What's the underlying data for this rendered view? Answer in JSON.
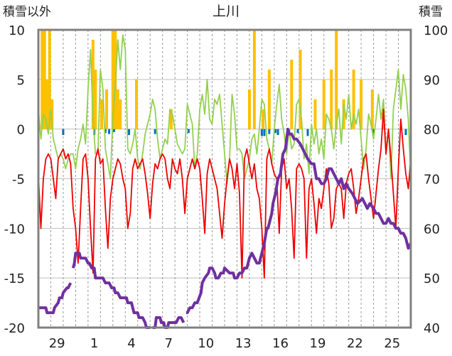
{
  "chart_data": {
    "type": "line",
    "title": "上川",
    "left_axis_label": "積雪以外",
    "right_axis_label": "積雪",
    "left_ylim": [
      -20,
      10
    ],
    "right_ylim": [
      40,
      100
    ],
    "left_ticks": [
      "10",
      "5",
      "0",
      "-5",
      "-10",
      "-15",
      "-20"
    ],
    "right_ticks": [
      "100",
      "90",
      "80",
      "70",
      "60",
      "50",
      "40"
    ],
    "x_ticks": [
      "29",
      "1",
      "4",
      "7",
      "10",
      "13",
      "16",
      "19",
      "22",
      "25"
    ],
    "x_range": [
      0,
      30
    ],
    "x_tick_positions": [
      1.5,
      4.5,
      7.5,
      10.5,
      13.5,
      16.5,
      19.5,
      22.5,
      25.5,
      28.5
    ],
    "day_grid": [
      1,
      2,
      3,
      4,
      5,
      6,
      7,
      8,
      9,
      10,
      11,
      12,
      13,
      14,
      15,
      16,
      17,
      18,
      19,
      20,
      21,
      22,
      23,
      24,
      25,
      26,
      27,
      28,
      29
    ],
    "grid": "dashed-vertical-solid-horizontal",
    "colors": {
      "temperature": "#ee0000",
      "wind": "#92d050",
      "snowfall": "#ffc000",
      "precip": "#0070c0",
      "snow_depth": "#7030a0",
      "frame": "#808080"
    },
    "series": [
      {
        "key": "snowfall",
        "axis": "left",
        "style": "bar",
        "x": [
          0.3,
          0.5,
          0.7,
          0.9,
          1.1,
          4.4,
          4.6,
          5.1,
          5.5,
          6.0,
          6.2,
          6.4,
          6.6,
          7.9,
          10.7,
          17.0,
          17.4,
          18.1,
          18.6,
          20.4,
          21.1,
          22.3,
          23.0,
          23.6,
          24.0,
          24.6,
          25.4,
          26.0,
          26.9,
          27.8
        ],
        "values": [
          10,
          10,
          5,
          10,
          3,
          9,
          6,
          3,
          4,
          10,
          10,
          4,
          3,
          5,
          2,
          4,
          10,
          2,
          6,
          7,
          8,
          3,
          5,
          6,
          10,
          3,
          6,
          5,
          4,
          2
        ]
      },
      {
        "key": "precip",
        "axis": "left",
        "style": "bar",
        "x": [
          2.0,
          4.5,
          5.4,
          5.7,
          6.1,
          7.3,
          9.4,
          12.1,
          18.0,
          18.2,
          18.6,
          19.1,
          19.3,
          20.2,
          20.9,
          21.7,
          27.0,
          29.6
        ],
        "values": [
          -0.6,
          -0.6,
          -0.4,
          -0.5,
          -0.3,
          -0.6,
          -0.5,
          -0.4,
          -0.7,
          -0.7,
          -0.5,
          -0.4,
          -0.6,
          -0.6,
          -0.4,
          -0.7,
          -0.5,
          -0.6
        ]
      },
      {
        "key": "wind",
        "axis": "left",
        "style": "line",
        "x": [
          0.0,
          0.2,
          0.4,
          0.6,
          0.8,
          1.0,
          1.2,
          1.4,
          1.6,
          1.8,
          2.0,
          2.2,
          2.4,
          2.6,
          2.8,
          3.0,
          3.2,
          3.4,
          3.6,
          3.8,
          4.0,
          4.2,
          4.4,
          4.6,
          4.8,
          5.0,
          5.2,
          5.4,
          5.6,
          5.8,
          6.0,
          6.2,
          6.4,
          6.6,
          6.8,
          7.0,
          7.2,
          7.4,
          7.6,
          7.8,
          8.0,
          8.2,
          8.4,
          8.6,
          8.8,
          9.0,
          9.2,
          9.4,
          9.6,
          9.8,
          10.0,
          10.2,
          10.4,
          10.6,
          10.8,
          11.0,
          11.2,
          11.4,
          11.6,
          11.8,
          12.0,
          12.2,
          12.4,
          12.6,
          12.8,
          13.0,
          13.2,
          13.4,
          13.6,
          13.8,
          14.0,
          14.2,
          14.4,
          14.6,
          14.8,
          15.0,
          15.2,
          15.4,
          15.6,
          15.8,
          16.0,
          16.2,
          16.4,
          16.6,
          16.8,
          17.0,
          17.2,
          17.4,
          17.6,
          17.8,
          18.0,
          18.2,
          18.4,
          18.6,
          18.8,
          19.0,
          19.2,
          19.4,
          19.6,
          19.8,
          20.0,
          20.2,
          20.4,
          20.6,
          20.8,
          21.0,
          21.2,
          21.4,
          21.6,
          21.8,
          22.0,
          22.2,
          22.4,
          22.6,
          22.8,
          23.0,
          23.2,
          23.4,
          23.6,
          23.8,
          24.0,
          24.2,
          24.4,
          24.6,
          24.8,
          25.0,
          25.2,
          25.4,
          25.6,
          25.8,
          26.0,
          26.2,
          26.4,
          26.6,
          26.8,
          27.0,
          27.2,
          27.4,
          27.6,
          27.8,
          28.0,
          28.2,
          28.4,
          28.6,
          28.8,
          29.0,
          29.2,
          29.4,
          29.6,
          29.8,
          30.0
        ],
        "values": [
          2.0,
          -1.0,
          1.5,
          1.0,
          -0.5,
          2.0,
          -1.0,
          -2.0,
          -3.0,
          -2.5,
          -3.0,
          -4.0,
          -3.0,
          -2.5,
          -2.5,
          -4.0,
          -2.0,
          -1.0,
          0.5,
          -1.5,
          4.0,
          8.0,
          1.0,
          -2.5,
          -2.5,
          6.0,
          4.0,
          -2.0,
          -3.5,
          -5.0,
          1.0,
          4.5,
          9.0,
          6.0,
          9.5,
          8.0,
          -2.0,
          -2.5,
          -1.5,
          0.0,
          -3.0,
          -4.0,
          -2.5,
          -0.5,
          0.5,
          1.5,
          3.0,
          2.0,
          -1.0,
          -3.0,
          -2.0,
          -1.0,
          -1.5,
          2.0,
          1.5,
          0.0,
          -1.5,
          -2.0,
          -2.5,
          -2.0,
          2.5,
          1.5,
          0.5,
          -4.0,
          -2.5,
          2.0,
          3.5,
          1.5,
          5.0,
          1.0,
          0.5,
          3.0,
          2.5,
          3.5,
          0.5,
          -2.5,
          -5.5,
          -3.0,
          3.5,
          1.5,
          -2.0,
          -2.0,
          -2.5,
          -5.0,
          -4.0,
          -3.0,
          -1.0,
          -0.5,
          -2.5,
          0.0,
          3.0,
          2.5,
          -1.0,
          -2.0,
          -3.5,
          0.0,
          2.5,
          4.5,
          1.0,
          -0.5,
          -2.5,
          0.0,
          -2.0,
          -1.5,
          2.5,
          3.0,
          1.0,
          -3.0,
          -1.5,
          -4.5,
          0.5,
          -1.5,
          0.0,
          -2.5,
          -1.0,
          -3.0,
          1.5,
          1.0,
          0.0,
          -2.0,
          0.5,
          2.0,
          -1.5,
          2.5,
          1.0,
          3.5,
          0.0,
          1.5,
          0.5,
          2.0,
          -1.0,
          -4.0,
          -2.0,
          1.5,
          0.5,
          -1.0,
          1.0,
          3.5,
          1.0,
          3.0,
          -2.5,
          0.0,
          -5.0,
          2.0,
          4.0,
          6.0,
          2.0,
          5.5,
          4.0,
          1.0,
          -5.0
        ],
        "name": ""
      },
      {
        "key": "temperature",
        "axis": "left",
        "style": "line",
        "x": [
          0.0,
          0.2,
          0.4,
          0.6,
          0.8,
          1.0,
          1.2,
          1.4,
          1.6,
          1.8,
          2.0,
          2.2,
          2.4,
          2.6,
          2.8,
          3.0,
          3.2,
          3.4,
          3.6,
          3.8,
          4.0,
          4.2,
          4.4,
          4.6,
          4.8,
          5.0,
          5.2,
          5.4,
          5.6,
          5.8,
          6.0,
          6.2,
          6.4,
          6.6,
          6.8,
          7.0,
          7.2,
          7.4,
          7.6,
          7.8,
          8.0,
          8.2,
          8.4,
          8.6,
          8.8,
          9.0,
          9.2,
          9.4,
          9.6,
          9.8,
          10.0,
          10.2,
          10.4,
          10.6,
          10.8,
          11.0,
          11.2,
          11.4,
          11.6,
          11.8,
          12.0,
          12.2,
          12.4,
          12.6,
          12.8,
          13.0,
          13.2,
          13.4,
          13.6,
          13.8,
          14.0,
          14.2,
          14.4,
          14.6,
          14.8,
          15.0,
          15.2,
          15.4,
          15.6,
          15.8,
          16.0,
          16.2,
          16.4,
          16.6,
          16.8,
          17.0,
          17.2,
          17.4,
          17.6,
          17.8,
          18.0,
          18.2,
          18.4,
          18.6,
          18.8,
          19.0,
          19.2,
          19.4,
          19.6,
          19.8,
          20.0,
          20.2,
          20.4,
          20.6,
          20.8,
          21.0,
          21.2,
          21.4,
          21.6,
          21.8,
          22.0,
          22.2,
          22.4,
          22.6,
          22.8,
          23.0,
          23.2,
          23.4,
          23.6,
          23.8,
          24.0,
          24.2,
          24.4,
          24.6,
          24.8,
          25.0,
          25.2,
          25.4,
          25.6,
          25.8,
          26.0,
          26.2,
          26.4,
          26.6,
          26.8,
          27.0,
          27.2,
          27.4,
          27.6,
          27.8,
          28.0,
          28.2,
          28.4,
          28.6,
          28.8,
          29.0,
          29.2,
          29.4,
          29.6,
          29.8,
          30.0
        ],
        "values": [
          -4.5,
          -10.0,
          -5.0,
          -3.0,
          -2.5,
          -3.0,
          -5.0,
          -7.0,
          -3.0,
          -2.5,
          -2.0,
          -3.0,
          -2.5,
          -3.5,
          -8.0,
          -10.0,
          -13.5,
          -8.0,
          -3.0,
          -2.5,
          -5.0,
          -10.0,
          -14.5,
          -3.0,
          -2.0,
          -3.5,
          -3.0,
          -8.0,
          -12.0,
          -7.0,
          -5.0,
          -4.0,
          -3.0,
          -3.5,
          -5.0,
          -6.0,
          -10.0,
          -8.5,
          -4.0,
          -3.0,
          -4.0,
          -3.5,
          -3.0,
          -4.5,
          -6.5,
          -9.0,
          -5.5,
          -3.5,
          -4.0,
          -3.0,
          -2.5,
          -3.0,
          -5.0,
          -6.0,
          -3.0,
          -4.0,
          -4.5,
          -3.0,
          -5.0,
          -8.5,
          -5.0,
          -4.0,
          -3.0,
          -4.0,
          -3.0,
          -4.0,
          -7.0,
          -10.5,
          -4.5,
          -3.0,
          -4.0,
          -5.0,
          -6.0,
          -8.5,
          -11.0,
          -7.5,
          -5.0,
          -3.0,
          -4.0,
          -6.0,
          -3.5,
          -6.5,
          -15.0,
          -3.0,
          -2.0,
          -3.5,
          -5.0,
          -3.5,
          -6.0,
          -7.0,
          -10.0,
          -15.0,
          -3.0,
          -2.0,
          -3.5,
          -4.5,
          -5.0,
          -10.5,
          -4.0,
          -3.0,
          -6.0,
          -5.0,
          -8.0,
          -13.0,
          -4.0,
          -3.5,
          -4.0,
          -5.0,
          -13.0,
          -6.0,
          -5.0,
          -7.5,
          -10.5,
          -7.0,
          -8.0,
          -6.0,
          -4.0,
          -5.5,
          -10.0,
          -9.0,
          -6.0,
          -5.5,
          -6.0,
          -9.0,
          -5.5,
          -4.5,
          -4.0,
          -6.0,
          -8.5,
          -7.0,
          -5.0,
          -3.0,
          -2.5,
          -5.0,
          -7.0,
          -9.0,
          -6.5,
          -4.0,
          -2.0,
          2.0,
          -2.5,
          0.0,
          -3.0,
          -6.5,
          -10.0,
          -4.0,
          1.0,
          -2.0,
          -4.5,
          -6.0,
          -3.0
        ],
        "name": ""
      },
      {
        "key": "snow_depth",
        "axis": "right",
        "style": "line",
        "segments": [
          {
            "x": [
              0.0,
              0.6,
              0.7,
              1.2,
              1.3,
              1.6,
              1.7,
              1.9,
              2.0,
              2.3,
              2.4,
              2.6
            ],
            "values": [
              44,
              44,
              43,
              43,
              44,
              45,
              46,
              46,
              47,
              48,
              48,
              49
            ]
          },
          {
            "x": [
              2.8,
              2.9,
              3.0,
              3.3,
              3.4,
              3.8,
              4.0,
              4.1,
              4.3,
              4.5,
              4.6,
              5.2,
              5.4,
              5.7,
              5.9,
              6.1,
              6.2,
              6.4,
              6.6,
              7.1,
              7.2,
              7.5,
              7.7,
              8.0,
              8.1,
              8.4,
              8.6,
              8.7,
              9.0
            ],
            "values": [
              52,
              53,
              55,
              55,
              54,
              54,
              53,
              53,
              52,
              52,
              50,
              50,
              49,
              49,
              48,
              48,
              47,
              47,
              46,
              46,
              45,
              45,
              43,
              43,
              42,
              42,
              41,
              40,
              40
            ]
          },
          {
            "x": [
              9.2,
              9.4,
              9.5,
              9.8,
              9.9,
              10.1,
              10.2,
              10.4,
              10.5,
              11.1,
              11.3,
              11.5,
              11.7
            ],
            "values": [
              40,
              40,
              42,
              42,
              41,
              41,
              40,
              40,
              41,
              41,
              42,
              42,
              41
            ]
          },
          {
            "x": [
              11.9,
              12.0,
              12.2,
              12.4,
              12.6,
              12.8,
              13.1,
              13.2,
              13.4,
              13.7,
              13.8,
              14.0,
              14.2,
              14.3,
              14.5,
              14.7,
              14.9,
              15.0,
              15.4,
              15.7,
              15.8,
              16.0,
              16.2,
              16.4,
              16.6,
              16.8,
              17.0,
              17.2,
              17.4,
              17.6,
              17.8,
              18.0,
              18.2,
              18.4,
              18.5,
              18.8,
              18.9,
              19.1,
              19.3,
              19.5,
              19.7,
              19.9,
              20.1,
              20.2,
              20.4,
              20.6,
              20.8,
              21.1,
              21.3,
              21.5,
              21.7,
              22.0,
              22.2,
              22.4,
              22.6,
              22.8,
              23.0,
              23.2,
              23.4,
              23.6,
              23.8,
              24.0,
              24.2,
              24.4,
              24.6,
              24.8,
              25.0,
              25.3,
              25.5,
              25.7,
              26.1,
              26.3,
              26.5,
              26.7,
              27.0,
              27.2,
              27.4,
              27.6,
              27.8,
              28.0,
              28.2,
              28.4,
              28.6,
              28.8,
              29.0,
              29.2,
              29.4,
              29.6,
              29.8,
              30.0
            ],
            "values": [
              43,
              43,
              44,
              44,
              45,
              45,
              47,
              49,
              50,
              51,
              52,
              52,
              51,
              50,
              50,
              51,
              51,
              52,
              51,
              51,
              50,
              50,
              51,
              51,
              52,
              52,
              54,
              55,
              54,
              53,
              53,
              55,
              57,
              60,
              60,
              63,
              65,
              67,
              70,
              71,
              75,
              76,
              80,
              79,
              79,
              78,
              78,
              77,
              76,
              75,
              74,
              73,
              73,
              70,
              70,
              69,
              69,
              70,
              72,
              72,
              71,
              70,
              69,
              70,
              68,
              69,
              68,
              67,
              66,
              65,
              66,
              65,
              64,
              65,
              64,
              63,
              63,
              62,
              61,
              61,
              62,
              61,
              61,
              60,
              60,
              59,
              59,
              58,
              56,
              57
            ]
          }
        ],
        "name": ""
      }
    ]
  }
}
